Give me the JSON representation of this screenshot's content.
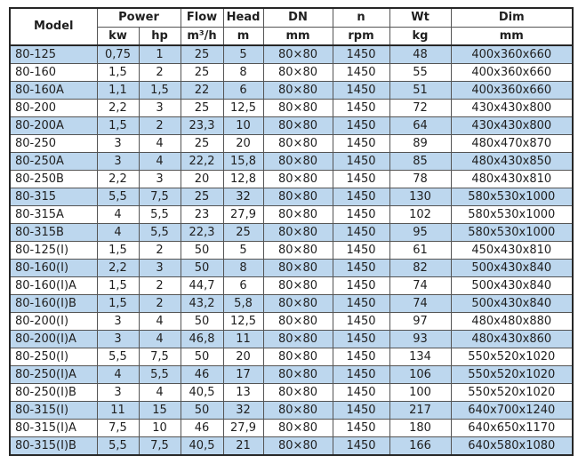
{
  "table": {
    "header": {
      "row1": [
        {
          "label": "Model"
        },
        {
          "label": "Power"
        },
        {
          "label": "Flow"
        },
        {
          "label": "Head"
        },
        {
          "label": "DN"
        },
        {
          "label": "n"
        },
        {
          "label": "Wt"
        },
        {
          "label": "Dim"
        }
      ],
      "row2": [
        {
          "label": "kw"
        },
        {
          "label": "hp"
        },
        {
          "label": "m³/h"
        },
        {
          "label": "m"
        },
        {
          "label": "mm"
        },
        {
          "label": "rpm"
        },
        {
          "label": "kg"
        },
        {
          "label": "mm"
        }
      ]
    },
    "columns": [
      "model",
      "power_kw",
      "power_hp",
      "flow_m3h",
      "head_m",
      "dn_mm",
      "n_rpm",
      "wt_kg",
      "dim_mm"
    ],
    "rows": [
      [
        "80-125",
        "0,75",
        "1",
        "25",
        "5",
        "80×80",
        "1450",
        "48",
        "400x360x660"
      ],
      [
        "80-160",
        "1,5",
        "2",
        "25",
        "8",
        "80×80",
        "1450",
        "55",
        "400x360x660"
      ],
      [
        "80-160A",
        "1,1",
        "1,5",
        "22",
        "6",
        "80×80",
        "1450",
        "51",
        "400x360x660"
      ],
      [
        "80-200",
        "2,2",
        "3",
        "25",
        "12,5",
        "80×80",
        "1450",
        "72",
        "430x430x800"
      ],
      [
        "80-200A",
        "1,5",
        "2",
        "23,3",
        "10",
        "80×80",
        "1450",
        "64",
        "430x430x800"
      ],
      [
        "80-250",
        "3",
        "4",
        "25",
        "20",
        "80×80",
        "1450",
        "89",
        "480x470x870"
      ],
      [
        "80-250A",
        "3",
        "4",
        "22,2",
        "15,8",
        "80×80",
        "1450",
        "85",
        "480x430x850"
      ],
      [
        "80-250B",
        "2,2",
        "3",
        "20",
        "12,8",
        "80×80",
        "1450",
        "78",
        "480x430x810"
      ],
      [
        "80-315",
        "5,5",
        "7,5",
        "25",
        "32",
        "80×80",
        "1450",
        "130",
        "580x530x1000"
      ],
      [
        "80-315A",
        "4",
        "5,5",
        "23",
        "27,9",
        "80×80",
        "1450",
        "102",
        "580x530x1000"
      ],
      [
        "80-315B",
        "4",
        "5,5",
        "22,3",
        "25",
        "80×80",
        "1450",
        "95",
        "580x530x1000"
      ],
      [
        "80-125(I)",
        "1,5",
        "2",
        "50",
        "5",
        "80×80",
        "1450",
        "61",
        "450x430x810"
      ],
      [
        "80-160(I)",
        "2,2",
        "3",
        "50",
        "8",
        "80×80",
        "1450",
        "82",
        "500x430x840"
      ],
      [
        "80-160(I)A",
        "1,5",
        "2",
        "44,7",
        "6",
        "80×80",
        "1450",
        "74",
        "500x430x840"
      ],
      [
        "80-160(I)B",
        "1,5",
        "2",
        "43,2",
        "5,8",
        "80×80",
        "1450",
        "74",
        "500x430x840"
      ],
      [
        "80-200(I)",
        "3",
        "4",
        "50",
        "12,5",
        "80×80",
        "1450",
        "97",
        "480x480x880"
      ],
      [
        "80-200(I)A",
        "3",
        "4",
        "46,8",
        "11",
        "80×80",
        "1450",
        "93",
        "480x430x860"
      ],
      [
        "80-250(I)",
        "5,5",
        "7,5",
        "50",
        "20",
        "80×80",
        "1450",
        "134",
        "550x520x1020"
      ],
      [
        "80-250(I)A",
        "4",
        "5,5",
        "46",
        "17",
        "80×80",
        "1450",
        "106",
        "550x520x1020"
      ],
      [
        "80-250(I)B",
        "3",
        "4",
        "40,5",
        "13",
        "80×80",
        "1450",
        "100",
        "550x520x1020"
      ],
      [
        "80-315(I)",
        "11",
        "15",
        "50",
        "32",
        "80×80",
        "1450",
        "217",
        "640x700x1240"
      ],
      [
        "80-315(I)A",
        "7,5",
        "10",
        "46",
        "27,9",
        "80×80",
        "1450",
        "180",
        "640x650x1170"
      ],
      [
        "80-315(I)B",
        "5,5",
        "7,5",
        "40,5",
        "21",
        "80×80",
        "1450",
        "166",
        "640x580x1080"
      ]
    ]
  },
  "colors": {
    "row_alt": "#BDD7EE",
    "row_base": "#FFFFFF",
    "border_inner": "#545454",
    "border_outer": "#262626",
    "text": "#1F1F1F"
  }
}
